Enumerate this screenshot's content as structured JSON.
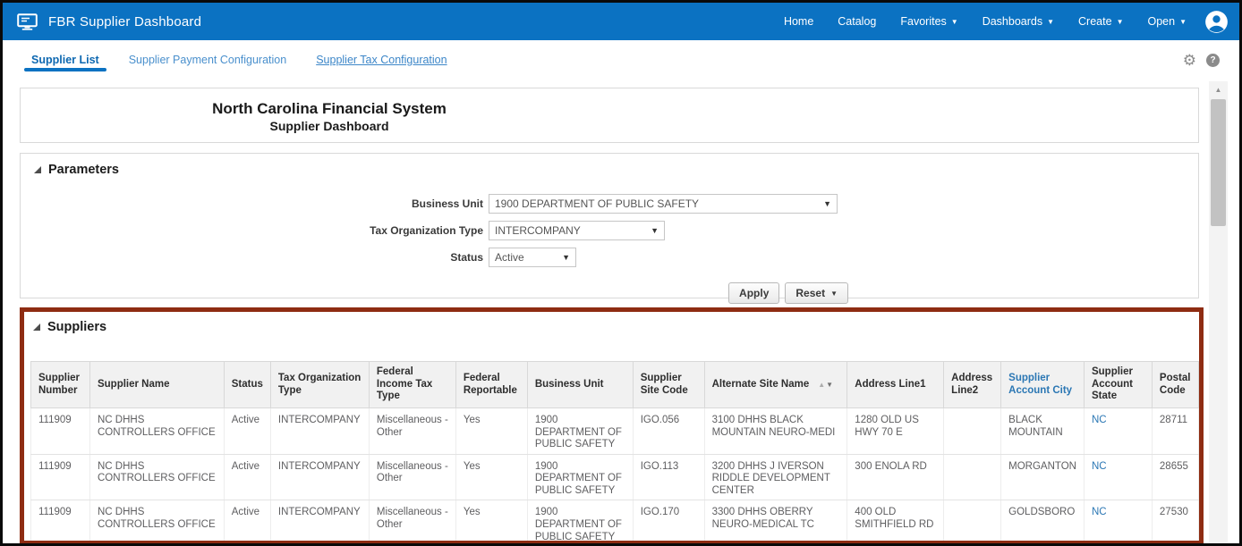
{
  "colors": {
    "accent": "#0b72c2",
    "link_blue": "#2b77b4",
    "highlight_border": "#8e2c12"
  },
  "topbar": {
    "title": "FBR Supplier Dashboard",
    "app_icon": "monitor-icon",
    "avatar_icon": "user-avatar-icon",
    "nav": [
      {
        "label": "Home",
        "dropdown": false
      },
      {
        "label": "Catalog",
        "dropdown": false
      },
      {
        "label": "Favorites",
        "dropdown": true
      },
      {
        "label": "Dashboards",
        "dropdown": true
      },
      {
        "label": "Create",
        "dropdown": true
      },
      {
        "label": "Open",
        "dropdown": true
      }
    ]
  },
  "tabs": [
    {
      "label": "Supplier List",
      "active": true,
      "underlined": false
    },
    {
      "label": "Supplier Payment Configuration",
      "active": false,
      "underlined": false
    },
    {
      "label": "Supplier Tax Configuration",
      "active": false,
      "underlined": true
    }
  ],
  "tab_icons": {
    "settings": "gear-icon",
    "settings_glyph": "⚙",
    "help": "help-icon",
    "help_glyph": "?"
  },
  "page_title": {
    "line1": "North Carolina Financial System",
    "line2": "Supplier Dashboard"
  },
  "parameters": {
    "section_title": "Parameters",
    "fields": [
      {
        "label": "Business Unit",
        "value": "1900 DEPARTMENT OF PUBLIC SAFETY"
      },
      {
        "label": "Tax Organization Type",
        "value": "INTERCOMPANY"
      },
      {
        "label": "Status",
        "value": "Active"
      }
    ],
    "apply_label": "Apply",
    "reset_label": "Reset"
  },
  "suppliers": {
    "section_title": "Suppliers",
    "columns": [
      "Supplier Number",
      "Supplier Name",
      "Status",
      "Tax Organization Type",
      "Federal Income Tax Type",
      "Federal Reportable",
      "Business Unit",
      "Supplier Site Code",
      "Alternate Site Name",
      "Address Line1",
      "Address Line2",
      "Supplier Account City",
      "Supplier Account State",
      "Postal Code"
    ],
    "sorted_column_index": 8,
    "link_header_index": 11,
    "link_value_column_index": 12,
    "rows": [
      [
        "111909",
        "NC DHHS CONTROLLERS OFFICE",
        "Active",
        "INTERCOMPANY",
        "Miscellaneous - Other",
        "Yes",
        "1900 DEPARTMENT OF PUBLIC SAFETY",
        "IGO.056",
        "3100 DHHS BLACK MOUNTAIN NEURO-MEDI",
        "1280 OLD US HWY 70 E",
        "",
        "BLACK MOUNTAIN",
        "NC",
        "28711"
      ],
      [
        "111909",
        "NC DHHS CONTROLLERS OFFICE",
        "Active",
        "INTERCOMPANY",
        "Miscellaneous - Other",
        "Yes",
        "1900 DEPARTMENT OF PUBLIC SAFETY",
        "IGO.113",
        "3200 DHHS J IVERSON RIDDLE DEVELOPMENT CENTER",
        "300 ENOLA RD",
        "",
        "MORGANTON",
        "NC",
        "28655"
      ],
      [
        "111909",
        "NC DHHS CONTROLLERS OFFICE",
        "Active",
        "INTERCOMPANY",
        "Miscellaneous - Other",
        "Yes",
        "1900 DEPARTMENT OF PUBLIC SAFETY",
        "IGO.170",
        "3300 DHHS OBERRY NEURO-MEDICAL TC",
        "400 OLD SMITHFIELD RD",
        "",
        "GOLDSBORO",
        "NC",
        "27530"
      ]
    ]
  }
}
